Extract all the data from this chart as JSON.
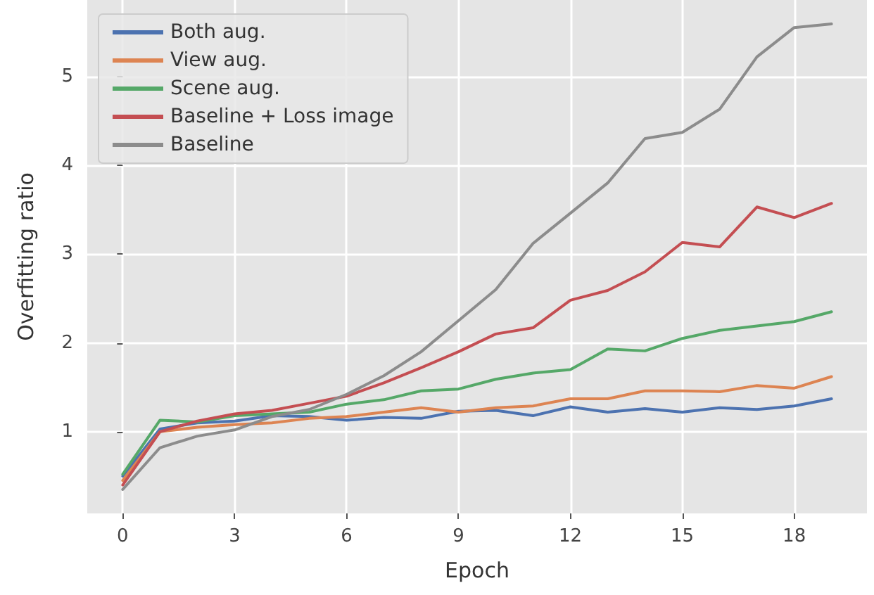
{
  "chart_data": {
    "type": "line",
    "xlabel": "Epoch",
    "ylabel": "Overfitting ratio",
    "x": [
      0,
      1,
      2,
      3,
      4,
      5,
      6,
      7,
      8,
      9,
      10,
      11,
      12,
      13,
      14,
      15,
      16,
      17,
      18,
      19
    ],
    "xlim": [
      -0.95,
      19.95
    ],
    "xticks": [
      0,
      3,
      6,
      9,
      12,
      15,
      18
    ],
    "ylim": [
      0.08,
      5.86
    ],
    "yticks": [
      1,
      2,
      3,
      4,
      5
    ],
    "grid": true,
    "legend": "top left",
    "line_style": "solid",
    "marker": "none",
    "series": [
      {
        "name": "Both aug.",
        "color": "#4c72b0",
        "values": [
          0.5,
          1.03,
          1.1,
          1.12,
          1.18,
          1.17,
          1.13,
          1.16,
          1.15,
          1.23,
          1.24,
          1.18,
          1.28,
          1.22,
          1.26,
          1.22,
          1.27,
          1.25,
          1.29,
          1.37
        ]
      },
      {
        "name": "View aug.",
        "color": "#dd8452",
        "values": [
          0.45,
          1.0,
          1.05,
          1.08,
          1.1,
          1.15,
          1.17,
          1.22,
          1.27,
          1.22,
          1.27,
          1.29,
          1.37,
          1.37,
          1.46,
          1.46,
          1.45,
          1.52,
          1.49,
          1.62
        ]
      },
      {
        "name": "Scene aug.",
        "color": "#55a868",
        "values": [
          0.52,
          1.13,
          1.11,
          1.18,
          1.2,
          1.22,
          1.31,
          1.36,
          1.46,
          1.48,
          1.59,
          1.66,
          1.7,
          1.93,
          1.91,
          2.05,
          2.14,
          2.19,
          2.24,
          2.35
        ]
      },
      {
        "name": "Baseline + Loss image",
        "color": "#c44e52",
        "values": [
          0.4,
          1.0,
          1.12,
          1.2,
          1.24,
          1.32,
          1.4,
          1.55,
          1.72,
          1.9,
          2.1,
          2.17,
          2.48,
          2.59,
          2.8,
          3.13,
          3.08,
          3.53,
          3.41,
          3.57
        ]
      },
      {
        "name": "Baseline",
        "color": "#8c8c8c",
        "values": [
          0.35,
          0.82,
          0.95,
          1.02,
          1.17,
          1.25,
          1.42,
          1.63,
          1.9,
          2.25,
          2.6,
          3.12,
          3.46,
          3.8,
          4.3,
          4.37,
          4.63,
          5.22,
          5.55,
          5.59
        ]
      }
    ]
  }
}
